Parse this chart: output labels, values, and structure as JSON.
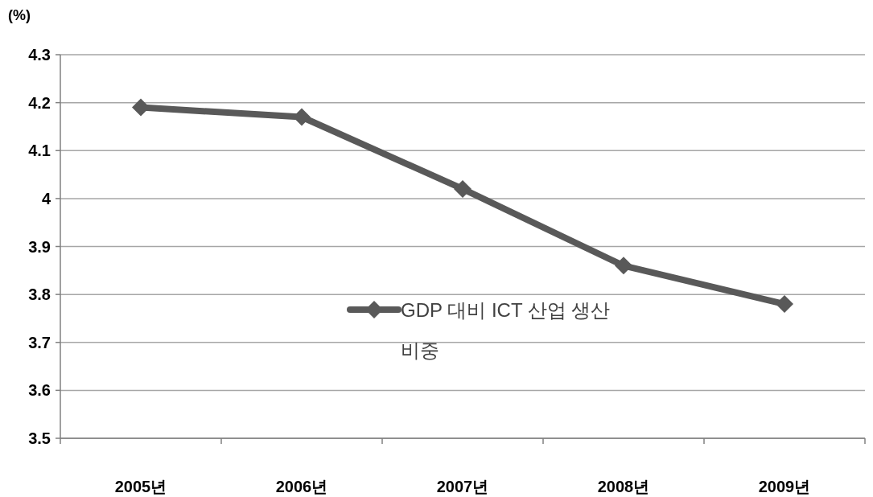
{
  "chart_data": {
    "type": "line",
    "ylabel": "(%)",
    "categories": [
      "2005년",
      "2006년",
      "2007년",
      "2008년",
      "2009년"
    ],
    "series": [
      {
        "name": "GDP 대비 ICT 산업 생산 비중",
        "color": "#595959",
        "values": [
          4.19,
          4.17,
          4.02,
          3.86,
          3.78
        ]
      }
    ],
    "ylim": [
      3.5,
      4.3
    ],
    "yticks": [
      3.5,
      3.6,
      3.7,
      3.8,
      3.9,
      4,
      4.1,
      4.2,
      4.3
    ],
    "grid": "y",
    "legend": "center",
    "marker": "diamond",
    "line_style": "solid"
  }
}
